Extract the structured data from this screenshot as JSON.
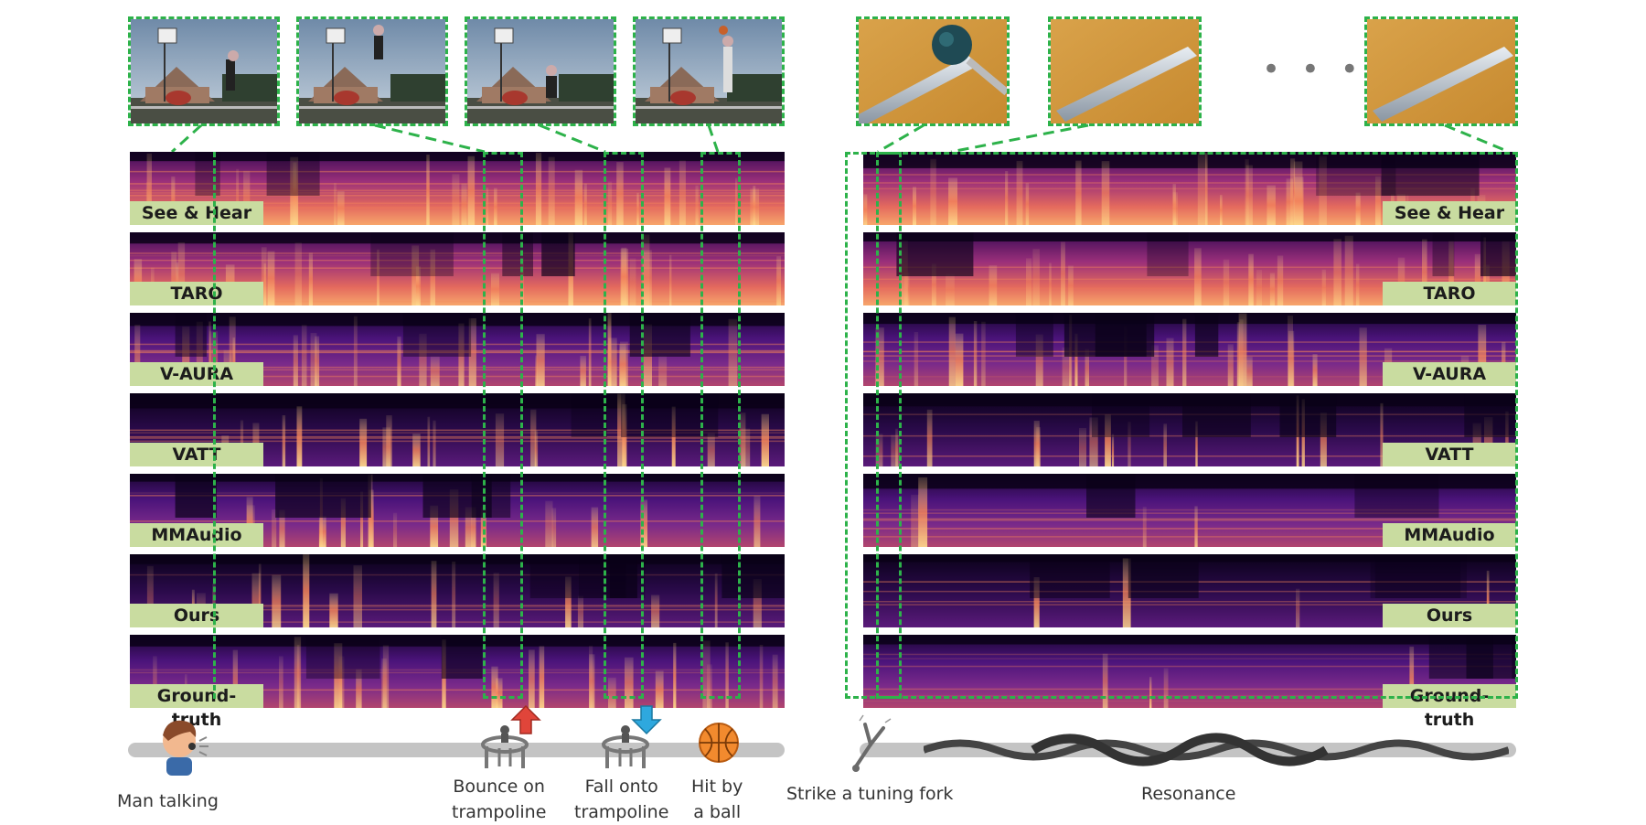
{
  "left_panel": {
    "labels": [
      "See & Hear",
      "TARO",
      "V-AURA",
      "VATT",
      "MMAudio",
      "Ours",
      "Ground-truth"
    ]
  },
  "right_panel": {
    "labels": [
      "See & Hear",
      "TARO",
      "V-AURA",
      "VATT",
      "MMAudio",
      "Ours",
      "Ground-truth"
    ],
    "ellipsis": "• • •"
  },
  "events": {
    "man_talking": "Man talking",
    "bounce_line1": "Bounce on",
    "bounce_line2": "trampoline",
    "fall_line1": "Fall onto",
    "fall_line2": "trampoline",
    "hit_line1": "Hit by",
    "hit_line2": "a ball",
    "strike": "Strike a tuning fork",
    "resonance": "Resonance"
  },
  "icons": {
    "man": "man-talking-icon",
    "trampoline_up": "trampoline-bounce-icon",
    "trampoline_down": "trampoline-fall-icon",
    "ball": "basketball-icon",
    "fork": "tuning-fork-icon",
    "wave": "resonance-wave-icon",
    "arrow_up": "red-up-arrow-icon",
    "arrow_down": "blue-down-arrow-icon"
  },
  "colors": {
    "dash": "#2db24a",
    "label_bg": "#c9dca0",
    "spec_dark": "#0a0118",
    "spec_mid": "#6a1f8c",
    "spec_hot": "#f4845a",
    "spec_bright": "#fdd98c",
    "arrow_up": "#e0453a",
    "arrow_down": "#2ea8de",
    "ball": "#f28a2e"
  }
}
